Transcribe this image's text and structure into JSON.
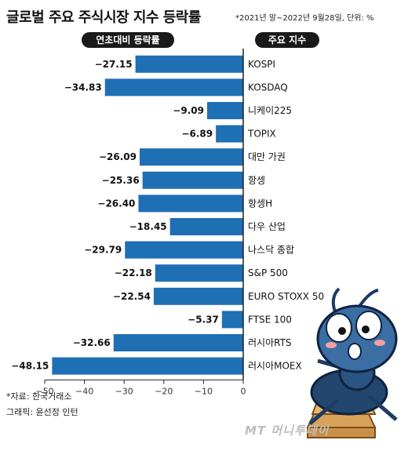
{
  "header": {
    "title": "글로벌 주요 주식시장 지수 등락률",
    "subtitle": "*2021년 말~2022년 9월28일, 단위: %",
    "left_pill": "연초대비 등락률",
    "right_pill": "주요 지수"
  },
  "chart_data": {
    "type": "bar",
    "orientation": "horizontal",
    "title": "글로벌 주요 주식시장 지수 등락률",
    "categories": [
      "KOSPI",
      "KOSDAQ",
      "니케이225",
      "TOPIX",
      "대만 가권",
      "항셍",
      "항셍H",
      "다우 산업",
      "나스닥 종합",
      "S&P 500",
      "EURO STOXX 50",
      "FTSE 100",
      "러시아RTS",
      "러시아MOEX"
    ],
    "values": [
      -27.15,
      -34.83,
      -9.09,
      -6.89,
      -26.09,
      -25.36,
      -26.4,
      -18.45,
      -29.79,
      -22.18,
      -22.54,
      -5.37,
      -32.66,
      -48.15
    ],
    "labels": [
      "-27.15",
      "-34.83",
      "-9.09",
      "-6.89",
      "-26.09",
      "-25.36",
      "-26.40",
      "-18.45",
      "-29.79",
      "-22.18",
      "-22.54",
      "-5.37",
      "-32.66",
      "-48.15"
    ],
    "xlim": [
      -50,
      0
    ],
    "xticks": [
      -50,
      -40,
      -30,
      -20,
      -10,
      0
    ],
    "xtick_labels": [
      "−50",
      "−40",
      "−30",
      "−20",
      "−10",
      "0"
    ],
    "grid": false,
    "bar_color": "#1f6fb5"
  },
  "footer": {
    "source": "*자료: 한국거래소",
    "graphic": "그래픽: 윤선정 인턴",
    "watermark": "MT 머니투데이"
  }
}
